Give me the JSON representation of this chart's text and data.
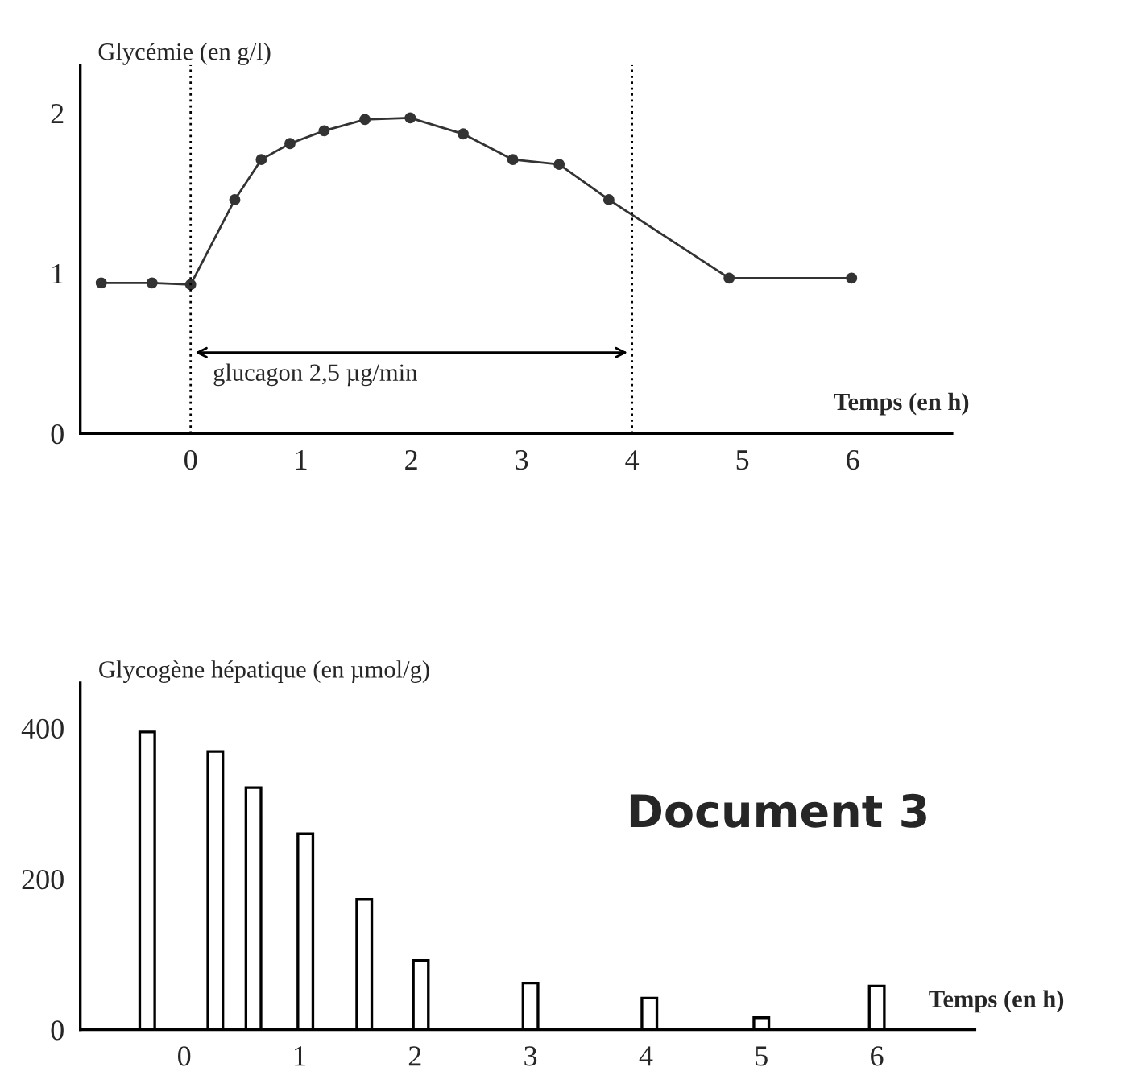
{
  "chart_data": [
    {
      "type": "line",
      "ylabel": "Glycémie (en g/l)",
      "xlabel": "Temps (en h)",
      "series": [
        {
          "color": "#333333",
          "marker": "circle",
          "line_style": "solid",
          "x": [
            -0.81,
            -0.35,
            0,
            0.4,
            0.64,
            0.9,
            1.21,
            1.58,
            1.99,
            2.47,
            2.92,
            3.34,
            3.79,
            4.88,
            5.99
          ],
          "values": [
            0.94,
            0.94,
            0.93,
            1.46,
            1.71,
            1.81,
            1.89,
            1.96,
            1.97,
            1.87,
            1.71,
            1.68,
            1.46,
            0.97,
            0.97
          ]
        }
      ],
      "xlim": [
        -1,
        6.9
      ],
      "xticks": [
        0,
        1,
        2,
        3,
        4,
        5,
        6
      ],
      "ylim": [
        0,
        2.3
      ],
      "yticks": [
        0,
        1,
        2
      ],
      "ref_lines": [
        {
          "axis": "x",
          "value": 0,
          "color": "#000000",
          "line_style": "dotted"
        },
        {
          "axis": "x",
          "value": 4,
          "color": "#000000",
          "line_style": "dotted"
        }
      ],
      "annotations": [
        "glucagon 2,5 µg/min"
      ],
      "grid": false,
      "legend": false
    },
    {
      "type": "bar",
      "ylabel": "Glycogène hépatique (en µmol/g)",
      "xlabel": "Temps (en h)",
      "x": [
        -0.32,
        0.27,
        0.6,
        1.05,
        1.56,
        2.05,
        3,
        4.03,
        5,
        6
      ],
      "values": [
        395,
        369,
        321,
        260,
        173,
        92,
        62,
        42,
        16,
        58
      ],
      "color": "#ffffff",
      "xlim": [
        -0.9,
        6.85
      ],
      "xticks": [
        0,
        1,
        2,
        3,
        4,
        5,
        6
      ],
      "ylim": [
        0,
        460
      ],
      "yticks": [
        0,
        200,
        400
      ],
      "annotations": [
        "Document 3"
      ],
      "grid": false,
      "legend": false
    }
  ]
}
